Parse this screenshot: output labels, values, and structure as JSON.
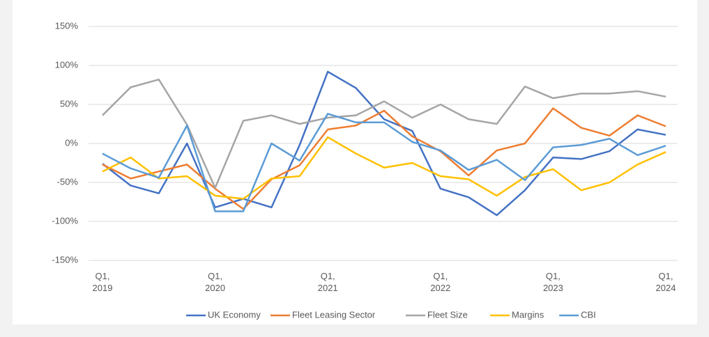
{
  "chart_data": {
    "type": "line",
    "categories": [
      "Q1,\n2019",
      null,
      null,
      null,
      "Q1,\n2020",
      null,
      null,
      null,
      "Q1,\n2021",
      null,
      null,
      null,
      "Q1,\n2022",
      null,
      null,
      null,
      "Q1,\n2023",
      null,
      null,
      null,
      "Q1,\n2024"
    ],
    "series": [
      {
        "name": "UK Economy",
        "color": "#4472c4",
        "values": [
          -26,
          -54,
          -64,
          0,
          -82,
          -71,
          -82,
          -2,
          92,
          71,
          31,
          16,
          -58,
          -69,
          -92,
          -60,
          -18,
          -20,
          -10,
          18,
          11
        ]
      },
      {
        "name": "Fleet Leasing Sector",
        "color": "#ed7d31",
        "values": [
          -27,
          -45,
          -36,
          -27,
          -58,
          -84,
          -46,
          -28,
          18,
          23,
          42,
          9,
          -10,
          -41,
          -9,
          0,
          45,
          20,
          10,
          36,
          22
        ]
      },
      {
        "name": "Fleet Size",
        "color": "#a5a5a5",
        "values": [
          36,
          72,
          82,
          24,
          -57,
          29,
          36,
          25,
          33,
          36,
          54,
          33,
          50,
          31,
          25,
          73,
          58,
          64,
          64,
          67,
          60
        ]
      },
      {
        "name": "Margins",
        "color": "#ffc000",
        "values": [
          -36,
          -18,
          -45,
          -42,
          -67,
          -71,
          -45,
          -42,
          8,
          -13,
          -31,
          -25,
          -42,
          -46,
          -67,
          -43,
          -33,
          -60,
          -50,
          -27,
          -11
        ]
      },
      {
        "name": "CBI",
        "color": "#5b9bd5",
        "values": [
          -13,
          -32,
          -44,
          23,
          -87,
          -87,
          0,
          -22,
          38,
          27,
          27,
          2,
          -9,
          -34,
          -21,
          -47,
          -5,
          -2,
          6,
          -15,
          -3
        ]
      }
    ],
    "ylim": [
      -150,
      150
    ],
    "yticks": [
      {
        "value": -150,
        "label": "-150%"
      },
      {
        "value": -100,
        "label": "-100%"
      },
      {
        "value": -50,
        "label": "-50%"
      },
      {
        "value": 0,
        "label": "0%"
      },
      {
        "value": 50,
        "label": "50%"
      },
      {
        "value": 100,
        "label": "100%"
      },
      {
        "value": 150,
        "label": "150%"
      }
    ],
    "grid": true,
    "legend": "bottom"
  }
}
